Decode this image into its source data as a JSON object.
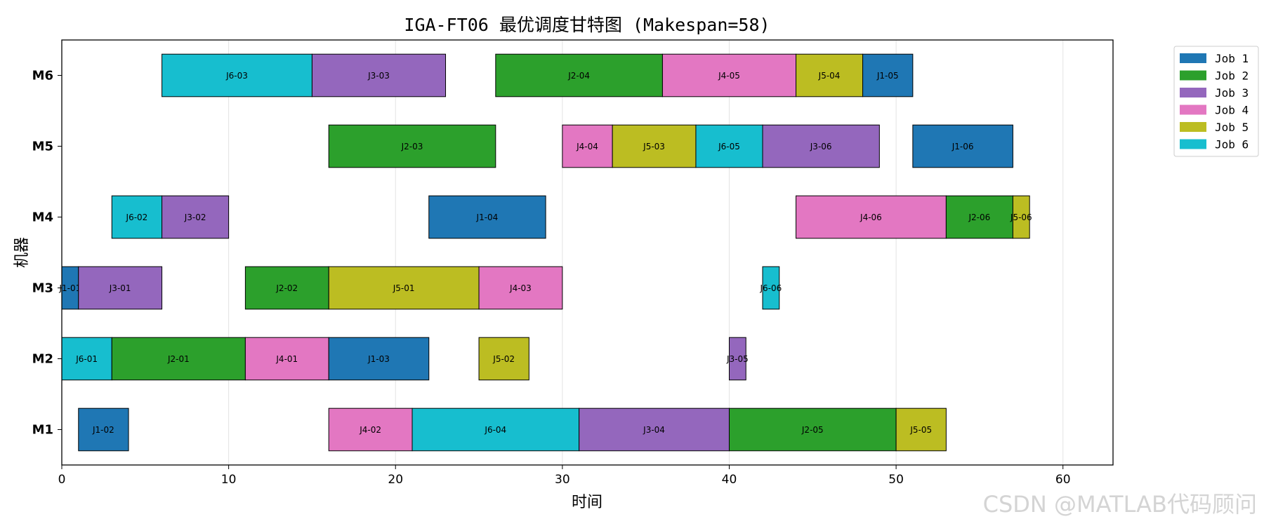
{
  "chart_data": {
    "type": "gantt",
    "title": "IGA-FT06 最优调度甘特图 (Makespan=58)",
    "xlabel": "时间",
    "ylabel": "机器",
    "xlim": [
      0,
      63
    ],
    "xticks": [
      0,
      10,
      20,
      30,
      40,
      50,
      60
    ],
    "machines": [
      "M1",
      "M2",
      "M3",
      "M4",
      "M5",
      "M6"
    ],
    "grid": "vertical",
    "legend_position": "outside-top-right",
    "jobs": [
      {
        "name": "Job 1",
        "color": "#1f77b4"
      },
      {
        "name": "Job 2",
        "color": "#2ca02c"
      },
      {
        "name": "Job 3",
        "color": "#9467bd"
      },
      {
        "name": "Job 4",
        "color": "#e377c2"
      },
      {
        "name": "Job 5",
        "color": "#bcbd22"
      },
      {
        "name": "Job 6",
        "color": "#17becf"
      }
    ],
    "tasks": [
      {
        "machine": "M6",
        "job": 6,
        "start": 6,
        "end": 15,
        "label": "J6-03"
      },
      {
        "machine": "M6",
        "job": 3,
        "start": 15,
        "end": 23,
        "label": "J3-03"
      },
      {
        "machine": "M6",
        "job": 2,
        "start": 26,
        "end": 36,
        "label": "J2-04"
      },
      {
        "machine": "M6",
        "job": 4,
        "start": 36,
        "end": 44,
        "label": "J4-05"
      },
      {
        "machine": "M6",
        "job": 5,
        "start": 44,
        "end": 48,
        "label": "J5-04"
      },
      {
        "machine": "M6",
        "job": 1,
        "start": 48,
        "end": 51,
        "label": "J1-05"
      },
      {
        "machine": "M5",
        "job": 2,
        "start": 16,
        "end": 26,
        "label": "J2-03"
      },
      {
        "machine": "M5",
        "job": 4,
        "start": 30,
        "end": 33,
        "label": "J4-04"
      },
      {
        "machine": "M5",
        "job": 5,
        "start": 33,
        "end": 38,
        "label": "J5-03"
      },
      {
        "machine": "M5",
        "job": 6,
        "start": 38,
        "end": 42,
        "label": "J6-05"
      },
      {
        "machine": "M5",
        "job": 3,
        "start": 42,
        "end": 49,
        "label": "J3-06"
      },
      {
        "machine": "M5",
        "job": 1,
        "start": 51,
        "end": 57,
        "label": "J1-06"
      },
      {
        "machine": "M4",
        "job": 6,
        "start": 3,
        "end": 6,
        "label": "J6-02"
      },
      {
        "machine": "M4",
        "job": 3,
        "start": 6,
        "end": 10,
        "label": "J3-02"
      },
      {
        "machine": "M4",
        "job": 1,
        "start": 22,
        "end": 29,
        "label": "J1-04"
      },
      {
        "machine": "M4",
        "job": 4,
        "start": 44,
        "end": 53,
        "label": "J4-06"
      },
      {
        "machine": "M4",
        "job": 2,
        "start": 53,
        "end": 57,
        "label": "J2-06"
      },
      {
        "machine": "M4",
        "job": 5,
        "start": 57,
        "end": 58,
        "label": "J5-06"
      },
      {
        "machine": "M3",
        "job": 1,
        "start": 0,
        "end": 1,
        "label": "J1-01"
      },
      {
        "machine": "M3",
        "job": 3,
        "start": 1,
        "end": 6,
        "label": "J3-01"
      },
      {
        "machine": "M3",
        "job": 2,
        "start": 11,
        "end": 16,
        "label": "J2-02"
      },
      {
        "machine": "M3",
        "job": 5,
        "start": 16,
        "end": 25,
        "label": "J5-01"
      },
      {
        "machine": "M3",
        "job": 4,
        "start": 25,
        "end": 30,
        "label": "J4-03"
      },
      {
        "machine": "M3",
        "job": 6,
        "start": 42,
        "end": 43,
        "label": "J6-06"
      },
      {
        "machine": "M2",
        "job": 6,
        "start": 0,
        "end": 3,
        "label": "J6-01"
      },
      {
        "machine": "M2",
        "job": 2,
        "start": 3,
        "end": 11,
        "label": "J2-01"
      },
      {
        "machine": "M2",
        "job": 4,
        "start": 11,
        "end": 16,
        "label": "J4-01"
      },
      {
        "machine": "M2",
        "job": 1,
        "start": 16,
        "end": 22,
        "label": "J1-03"
      },
      {
        "machine": "M2",
        "job": 5,
        "start": 25,
        "end": 28,
        "label": "J5-02"
      },
      {
        "machine": "M2",
        "job": 3,
        "start": 40,
        "end": 41,
        "label": "J3-05"
      },
      {
        "machine": "M1",
        "job": 1,
        "start": 1,
        "end": 4,
        "label": "J1-02"
      },
      {
        "machine": "M1",
        "job": 4,
        "start": 16,
        "end": 21,
        "label": "J4-02"
      },
      {
        "machine": "M1",
        "job": 6,
        "start": 21,
        "end": 31,
        "label": "J6-04"
      },
      {
        "machine": "M1",
        "job": 3,
        "start": 31,
        "end": 40,
        "label": "J3-04"
      },
      {
        "machine": "M1",
        "job": 2,
        "start": 40,
        "end": 50,
        "label": "J2-05"
      },
      {
        "machine": "M1",
        "job": 5,
        "start": 50,
        "end": 53,
        "label": "J5-05"
      }
    ]
  },
  "watermark": "CSDN @MATLAB代码顾问"
}
